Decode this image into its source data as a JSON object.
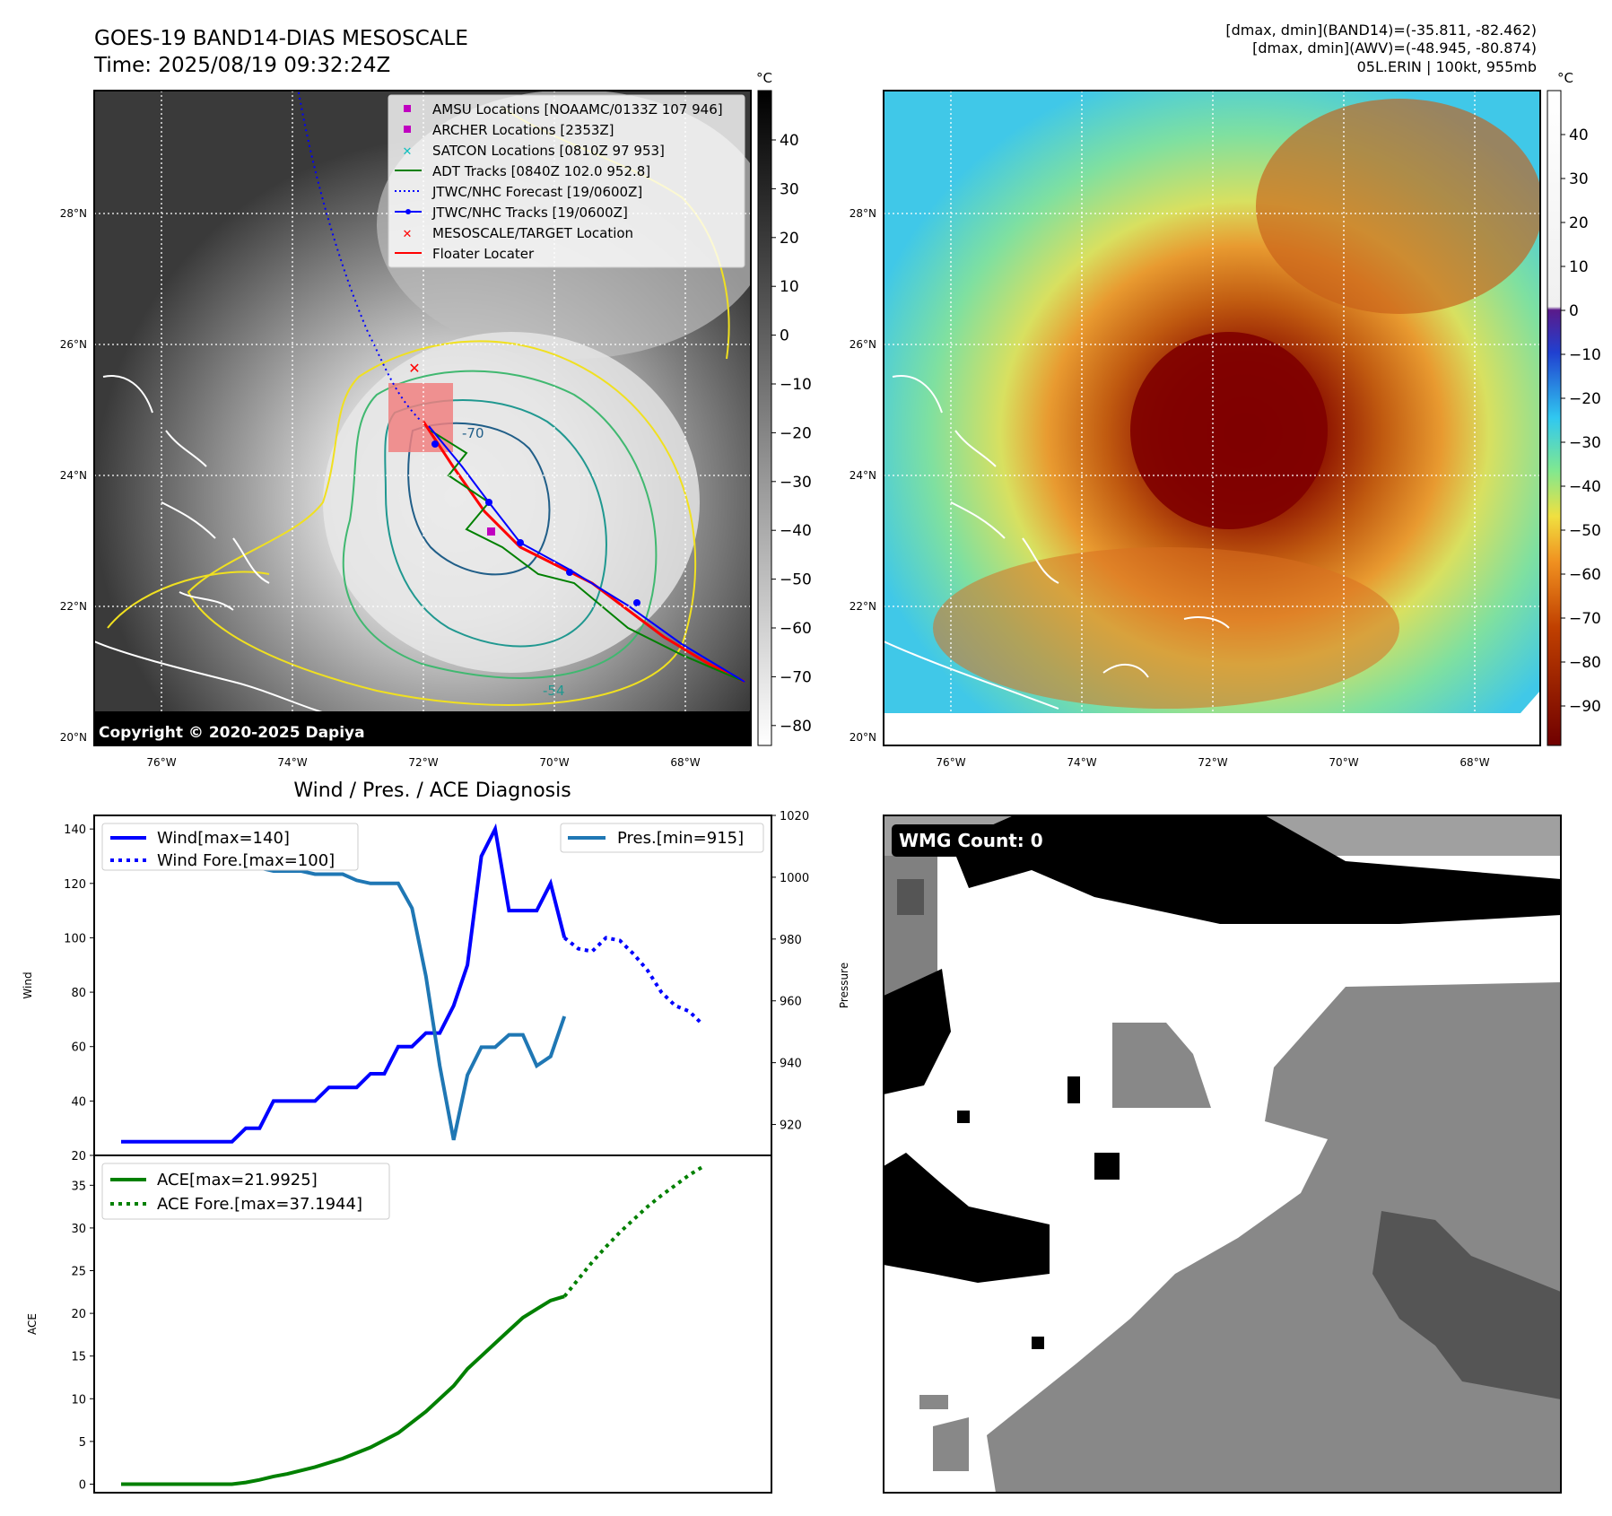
{
  "header": {
    "title_line1": "GOES-19 BAND14-DIAS MESOSCALE",
    "title_line2": "Time: 2025/08/19 09:32:24Z",
    "info_line1": "[dmax, dmin](BAND14)=(-35.811, -82.462)",
    "info_line2": "[dmax, dmin](AWV)=(-48.945, -80.874)",
    "info_line3": "05L.ERIN | 100kt, 955mb"
  },
  "map_axes": {
    "lat_labels": [
      "28°N",
      "26°N",
      "24°N",
      "22°N",
      "20°N"
    ],
    "lon_labels": [
      "76°W",
      "74°W",
      "72°W",
      "70°W",
      "68°W"
    ]
  },
  "left_colorbar": {
    "unit": "°C",
    "ticks": [
      "40",
      "30",
      "20",
      "10",
      "0",
      "−10",
      "−20",
      "−30",
      "−40",
      "−50",
      "−60",
      "−70",
      "−80"
    ]
  },
  "right_colorbar": {
    "unit": "°C",
    "ticks": [
      "40",
      "30",
      "20",
      "10",
      "0",
      "−10",
      "−20",
      "−30",
      "−40",
      "−50",
      "−60",
      "−70",
      "−80",
      "−90"
    ]
  },
  "map_legend": [
    {
      "label": "AMSU Locations [NOAAMC/0133Z 107 946]",
      "color": "#c000c0",
      "marker": "square"
    },
    {
      "label": "ARCHER Locations [2353Z]",
      "color": "#c000c0",
      "marker": "square"
    },
    {
      "label": "SATCON Locations [0810Z 97 953]",
      "color": "#10c0c0",
      "marker": "x"
    },
    {
      "label": "ADT Tracks [0840Z 102.0 952.8]",
      "color": "#008000",
      "marker": "line"
    },
    {
      "label": "JTWC/NHC Forecast [19/0600Z]",
      "color": "#0000ff",
      "marker": "dotted"
    },
    {
      "label": "JTWC/NHC Tracks [19/0600Z]",
      "color": "#0000ff",
      "marker": "line-dot"
    },
    {
      "label": "MESOSCALE/TARGET Location",
      "color": "#ff0000",
      "marker": "x"
    },
    {
      "label": "Floater Locater",
      "color": "#ff0000",
      "marker": "line"
    }
  ],
  "copyright": "Copyright © 2020-2025 Dapiya",
  "contour_labels": [
    "-70",
    "-54"
  ],
  "diag_title": "Wind / Pres. / ACE Diagnosis",
  "wmg_label": "WMG Count: 0",
  "colors": {
    "wind": "#0000ff",
    "pressure": "#1f77b4",
    "ace": "#008000"
  },
  "chart_data": [
    {
      "type": "line",
      "name": "wind_pressure",
      "ylabel": "Wind",
      "y2label": "Pressure",
      "ylim": [
        20,
        145
      ],
      "y2lim": [
        910,
        1020
      ],
      "yticks": [
        20,
        40,
        60,
        80,
        100,
        120,
        140
      ],
      "y2ticks": [
        920,
        940,
        960,
        980,
        1000,
        1020
      ],
      "legend_left": [
        "Wind[max=140]",
        "Wind Fore.[max=100]"
      ],
      "legend_right": [
        "Pres.[min=915]"
      ],
      "series": [
        {
          "name": "Wind[max=140]",
          "axis": "left",
          "style": "solid",
          "x": [
            0,
            8,
            9,
            10,
            11,
            14,
            15,
            16,
            17,
            18,
            19,
            20,
            21,
            22,
            23,
            24,
            25,
            26,
            27,
            28,
            29,
            30,
            31,
            32
          ],
          "y": [
            25,
            25,
            30,
            30,
            40,
            40,
            45,
            45,
            45,
            50,
            50,
            60,
            60,
            65,
            65,
            75,
            90,
            130,
            140,
            110,
            110,
            110,
            120,
            100
          ]
        },
        {
          "name": "Wind Fore.[max=100]",
          "axis": "left",
          "style": "dotted",
          "x": [
            32,
            33,
            34,
            35,
            36,
            37,
            38,
            39,
            40,
            41,
            42
          ],
          "y": [
            100,
            96,
            95,
            100,
            99,
            94,
            88,
            80,
            75,
            73,
            68
          ]
        },
        {
          "name": "Pres.[min=915]",
          "axis": "right",
          "style": "solid",
          "x": [
            0,
            1,
            2,
            3,
            4,
            5,
            6,
            7,
            8,
            9,
            10,
            11,
            12,
            13,
            14,
            15,
            16,
            17,
            18,
            19,
            20,
            21,
            22,
            23,
            24,
            25,
            26,
            27,
            28,
            29,
            30,
            31,
            32
          ],
          "y": [
            1015,
            1015,
            1009,
            1008,
            1007,
            1007,
            1007,
            1005,
            1005,
            1003,
            1003,
            1002,
            1002,
            1002,
            1001,
            1001,
            1001,
            999,
            998,
            998,
            998,
            990,
            968,
            939,
            915,
            936,
            945,
            945,
            949,
            949,
            939,
            942,
            955
          ]
        }
      ]
    },
    {
      "type": "line",
      "name": "ace",
      "ylabel": "ACE",
      "ylim": [
        -1,
        38.5
      ],
      "yticks": [
        0,
        5,
        10,
        15,
        20,
        25,
        30,
        35
      ],
      "legend": [
        "ACE[max=21.9925]",
        "ACE Fore.[max=37.1944]"
      ],
      "series": [
        {
          "name": "ACE[max=21.9925]",
          "style": "solid",
          "x": [
            0,
            8,
            9,
            10,
            11,
            12,
            14,
            16,
            18,
            20,
            22,
            24,
            25,
            26,
            27,
            28,
            29,
            30,
            31,
            32
          ],
          "y": [
            0,
            0,
            0.2,
            0.5,
            0.9,
            1.2,
            2.0,
            3.0,
            4.3,
            6.0,
            8.5,
            11.5,
            13.5,
            15.0,
            16.5,
            18.0,
            19.5,
            20.5,
            21.5,
            21.99
          ]
        },
        {
          "name": "ACE Fore.[max=37.1944]",
          "style": "dotted",
          "x": [
            32,
            33,
            34,
            35,
            36,
            37,
            38,
            39,
            40,
            41,
            42
          ],
          "y": [
            21.99,
            24.0,
            26.0,
            27.8,
            29.5,
            31.0,
            32.5,
            33.8,
            35.0,
            36.2,
            37.19
          ]
        }
      ]
    }
  ]
}
